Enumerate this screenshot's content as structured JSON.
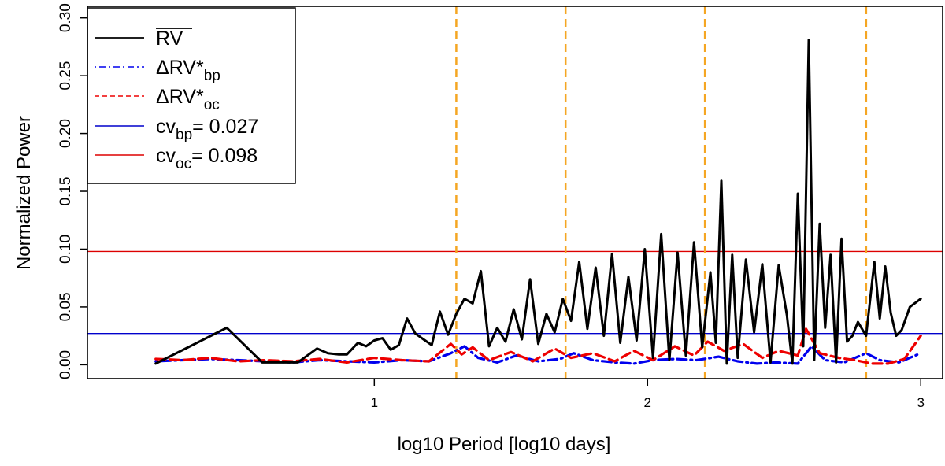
{
  "chart_data": {
    "type": "line",
    "title": "",
    "xlabel": "log10 Period [log10 days]",
    "ylabel": "Normalized Power",
    "xlim": [
      -0.05,
      3.08
    ],
    "ylim": [
      -0.012,
      0.31
    ],
    "x_ticks": [
      1,
      2,
      3
    ],
    "y_ticks": [
      0.0,
      0.05,
      0.1,
      0.15,
      0.2,
      0.25,
      0.3
    ],
    "x_tick_labels": [
      "1",
      "2",
      "3"
    ],
    "y_tick_labels": [
      "0.00",
      "0.05",
      "0.10",
      "0.15",
      "0.20",
      "0.25",
      "0.30"
    ],
    "legend": {
      "position": "top-left",
      "entries": [
        {
          "label": "RV",
          "overline": true,
          "style": "solid-black"
        },
        {
          "label": "ΔRV*",
          "sub": "bp",
          "style": "dotdash-blue"
        },
        {
          "label": "ΔRV*",
          "sub": "oc",
          "style": "dashed-red"
        },
        {
          "label": "cv",
          "sub": "bp",
          "suffix": "= 0.027",
          "style": "solid-blue"
        },
        {
          "label": "cv",
          "sub": "oc",
          "suffix": "= 0.098",
          "style": "solid-red"
        }
      ]
    },
    "hlines": [
      {
        "name": "cv_bp",
        "y": 0.027,
        "color": "#0000cc"
      },
      {
        "name": "cv_oc",
        "y": 0.098,
        "color": "#dd0000"
      }
    ],
    "vlines": [
      {
        "x": 1.3,
        "color": "#f5a623"
      },
      {
        "x": 1.7,
        "color": "#f5a623"
      },
      {
        "x": 2.21,
        "color": "#f5a623"
      },
      {
        "x": 2.8,
        "color": "#f5a623"
      }
    ],
    "series": [
      {
        "name": "RV",
        "color": "#000000",
        "style": "solid",
        "x": [
          0.2,
          0.46,
          0.59,
          0.72,
          0.79,
          0.83,
          0.87,
          0.9,
          0.94,
          0.97,
          1.0,
          1.03,
          1.06,
          1.09,
          1.12,
          1.15,
          1.18,
          1.21,
          1.24,
          1.27,
          1.3,
          1.33,
          1.36,
          1.39,
          1.42,
          1.45,
          1.48,
          1.51,
          1.54,
          1.57,
          1.6,
          1.63,
          1.66,
          1.69,
          1.72,
          1.75,
          1.78,
          1.81,
          1.84,
          1.87,
          1.9,
          1.93,
          1.96,
          1.99,
          2.02,
          2.05,
          2.08,
          2.11,
          2.14,
          2.17,
          2.2,
          2.23,
          2.25,
          2.27,
          2.29,
          2.31,
          2.33,
          2.36,
          2.39,
          2.42,
          2.45,
          2.48,
          2.51,
          2.53,
          2.55,
          2.57,
          2.59,
          2.61,
          2.63,
          2.65,
          2.67,
          2.69,
          2.71,
          2.73,
          2.75,
          2.77,
          2.8,
          2.83,
          2.85,
          2.87,
          2.89,
          2.91,
          2.93,
          2.96,
          3.0
        ],
        "y": [
          0.001,
          0.032,
          0.002,
          0.002,
          0.014,
          0.01,
          0.009,
          0.009,
          0.019,
          0.016,
          0.021,
          0.023,
          0.013,
          0.017,
          0.04,
          0.027,
          0.022,
          0.017,
          0.046,
          0.026,
          0.044,
          0.057,
          0.053,
          0.081,
          0.016,
          0.032,
          0.02,
          0.048,
          0.022,
          0.074,
          0.018,
          0.044,
          0.028,
          0.057,
          0.038,
          0.089,
          0.031,
          0.084,
          0.025,
          0.096,
          0.019,
          0.076,
          0.021,
          0.1,
          0.006,
          0.113,
          0.004,
          0.097,
          0.008,
          0.106,
          0.015,
          0.08,
          0.019,
          0.159,
          0.001,
          0.095,
          0.006,
          0.091,
          0.028,
          0.087,
          0.002,
          0.086,
          0.043,
          0.001,
          0.148,
          0.016,
          0.281,
          0.004,
          0.122,
          0.032,
          0.095,
          0.002,
          0.109,
          0.02,
          0.025,
          0.037,
          0.025,
          0.089,
          0.04,
          0.085,
          0.045,
          0.025,
          0.03,
          0.05,
          0.057
        ]
      },
      {
        "name": "ΔRV*bp",
        "color": "#0000ee",
        "style": "dotdash",
        "x": [
          0.2,
          0.3,
          0.4,
          0.5,
          0.6,
          0.7,
          0.8,
          0.9,
          1.0,
          1.1,
          1.2,
          1.28,
          1.33,
          1.38,
          1.45,
          1.52,
          1.6,
          1.68,
          1.73,
          1.8,
          1.88,
          1.95,
          2.02,
          2.1,
          2.18,
          2.26,
          2.33,
          2.4,
          2.47,
          2.55,
          2.6,
          2.65,
          2.72,
          2.8,
          2.85,
          2.92,
          3.0
        ],
        "y": [
          0.003,
          0.004,
          0.005,
          0.004,
          0.003,
          0.002,
          0.004,
          0.003,
          0.002,
          0.004,
          0.003,
          0.01,
          0.016,
          0.006,
          0.002,
          0.008,
          0.003,
          0.005,
          0.01,
          0.004,
          0.002,
          0.001,
          0.004,
          0.005,
          0.004,
          0.007,
          0.003,
          0.001,
          0.002,
          0.001,
          0.016,
          0.004,
          0.002,
          0.01,
          0.004,
          0.002,
          0.01
        ]
      },
      {
        "name": "ΔRV*oc",
        "color": "#ee0000",
        "style": "dashed",
        "x": [
          0.2,
          0.3,
          0.4,
          0.5,
          0.6,
          0.7,
          0.8,
          0.9,
          1.0,
          1.1,
          1.2,
          1.28,
          1.32,
          1.36,
          1.42,
          1.5,
          1.58,
          1.66,
          1.72,
          1.8,
          1.88,
          1.95,
          2.02,
          2.1,
          2.17,
          2.22,
          2.28,
          2.35,
          2.42,
          2.48,
          2.55,
          2.58,
          2.63,
          2.7,
          2.76,
          2.82,
          2.88,
          2.94,
          3.0
        ],
        "y": [
          0.005,
          0.004,
          0.006,
          0.003,
          0.004,
          0.003,
          0.005,
          0.002,
          0.006,
          0.004,
          0.003,
          0.018,
          0.009,
          0.015,
          0.004,
          0.011,
          0.003,
          0.014,
          0.006,
          0.01,
          0.003,
          0.012,
          0.004,
          0.016,
          0.008,
          0.02,
          0.012,
          0.018,
          0.006,
          0.012,
          0.008,
          0.031,
          0.01,
          0.006,
          0.004,
          0.001,
          0.001,
          0.005,
          0.025
        ]
      }
    ]
  }
}
